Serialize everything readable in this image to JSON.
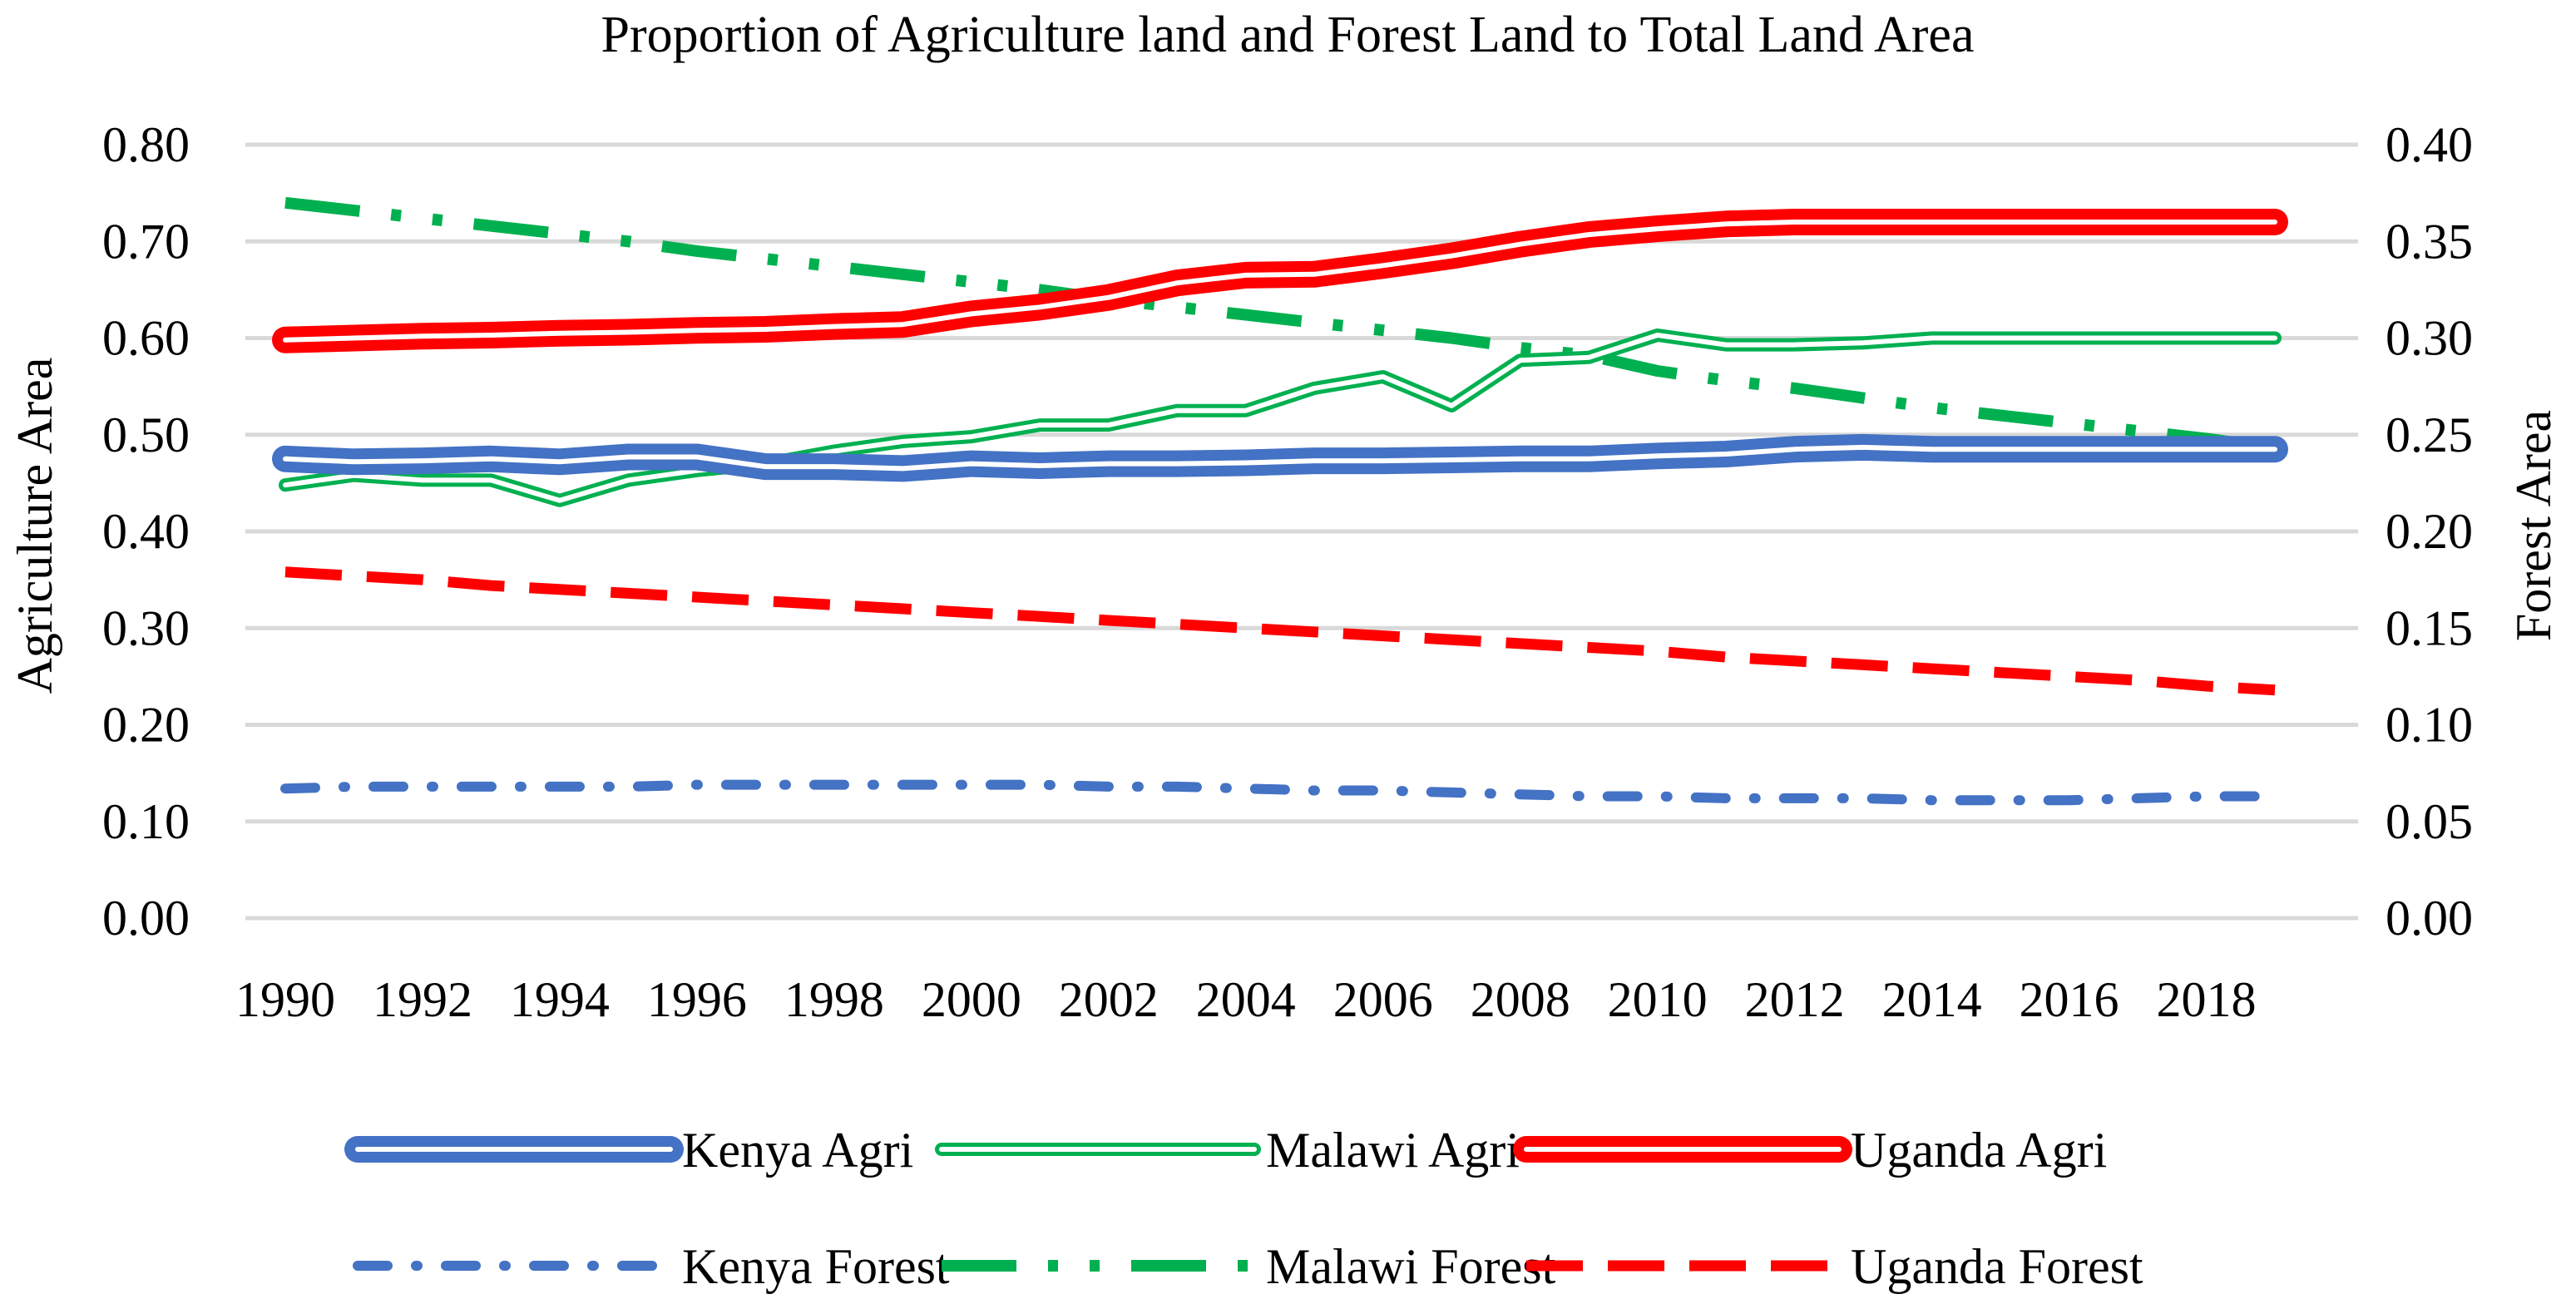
{
  "chart_data": {
    "type": "line",
    "title": "Proportion of Agriculture land and Forest Land to Total Land Area",
    "ylabel": "Agriculture Area",
    "y2label": "Forest Area",
    "ylim": [
      0,
      0.8
    ],
    "y2lim": [
      0,
      0.4
    ],
    "yticks": [
      "0.00",
      "0.10",
      "0.20",
      "0.30",
      "0.40",
      "0.50",
      "0.60",
      "0.70",
      "0.80"
    ],
    "y2ticks": [
      "0.00",
      "0.05",
      "0.10",
      "0.15",
      "0.20",
      "0.25",
      "0.30",
      "0.35",
      "0.40"
    ],
    "x": [
      1990,
      1991,
      1992,
      1993,
      1994,
      1995,
      1996,
      1997,
      1998,
      1999,
      2000,
      2001,
      2002,
      2003,
      2004,
      2005,
      2006,
      2007,
      2008,
      2009,
      2010,
      2011,
      2012,
      2013,
      2014,
      2015,
      2016,
      2017,
      2018,
      2019
    ],
    "xtick_labels": [
      "1990",
      "1992",
      "1994",
      "1996",
      "1998",
      "2000",
      "2002",
      "2004",
      "2006",
      "2008",
      "2010",
      "2012",
      "2014",
      "2016",
      "2018"
    ],
    "grid": true,
    "legend_position": "bottom",
    "series": [
      {
        "name": "Kenya Agri",
        "axis": "left",
        "color": "#4472c4",
        "style": "thick-double",
        "values": [
          0.475,
          0.472,
          0.473,
          0.475,
          0.472,
          0.477,
          0.477,
          0.467,
          0.467,
          0.465,
          0.47,
          0.468,
          0.47,
          0.47,
          0.471,
          0.473,
          0.473,
          0.474,
          0.475,
          0.475,
          0.478,
          0.48,
          0.485,
          0.487,
          0.485,
          0.485,
          0.485,
          0.485,
          0.485,
          0.485
        ]
      },
      {
        "name": "Malawi Agri",
        "axis": "left",
        "color": "#00b050",
        "style": "double",
        "values": [
          0.448,
          0.458,
          0.453,
          0.453,
          0.432,
          0.453,
          0.463,
          0.47,
          0.483,
          0.493,
          0.498,
          0.51,
          0.51,
          0.525,
          0.525,
          0.548,
          0.56,
          0.53,
          0.577,
          0.58,
          0.603,
          0.593,
          0.593,
          0.595,
          0.6,
          0.6,
          0.6,
          0.6,
          0.6,
          0.6
        ]
      },
      {
        "name": "Uganda Agri",
        "axis": "left",
        "color": "#ff0000",
        "style": "thick-double",
        "values": [
          0.598,
          0.6,
          0.602,
          0.603,
          0.605,
          0.606,
          0.608,
          0.609,
          0.612,
          0.614,
          0.625,
          0.632,
          0.642,
          0.657,
          0.665,
          0.666,
          0.675,
          0.685,
          0.697,
          0.707,
          0.713,
          0.718,
          0.72,
          0.72,
          0.72,
          0.72,
          0.72,
          0.72,
          0.72,
          0.72
        ]
      },
      {
        "name": "Kenya Forest",
        "axis": "right",
        "color": "#4472c4",
        "style": "dash-dot",
        "values": [
          0.067,
          0.068,
          0.068,
          0.068,
          0.068,
          0.068,
          0.069,
          0.069,
          0.069,
          0.069,
          0.069,
          0.069,
          0.068,
          0.068,
          0.067,
          0.066,
          0.066,
          0.065,
          0.064,
          0.063,
          0.063,
          0.062,
          0.062,
          0.062,
          0.061,
          0.061,
          0.061,
          0.062,
          0.063,
          0.063
        ]
      },
      {
        "name": "Malawi Forest",
        "axis": "right",
        "color": "#00b050",
        "style": "long-dash-dot-dot",
        "values": [
          0.37,
          0.366,
          0.362,
          0.358,
          0.354,
          0.35,
          0.345,
          0.341,
          0.337,
          0.333,
          0.329,
          0.325,
          0.32,
          0.316,
          0.312,
          0.308,
          0.304,
          0.3,
          0.295,
          0.291,
          0.283,
          0.278,
          0.274,
          0.269,
          0.264,
          0.26,
          0.256,
          0.252,
          0.248,
          0.243
        ]
      },
      {
        "name": "Uganda Forest",
        "axis": "right",
        "color": "#ff0000",
        "style": "long-dash",
        "values": [
          0.179,
          0.177,
          0.175,
          0.172,
          0.17,
          0.168,
          0.166,
          0.164,
          0.162,
          0.16,
          0.158,
          0.156,
          0.154,
          0.152,
          0.15,
          0.148,
          0.146,
          0.144,
          0.142,
          0.14,
          0.138,
          0.135,
          0.133,
          0.131,
          0.129,
          0.127,
          0.125,
          0.123,
          0.12,
          0.118
        ]
      }
    ]
  }
}
